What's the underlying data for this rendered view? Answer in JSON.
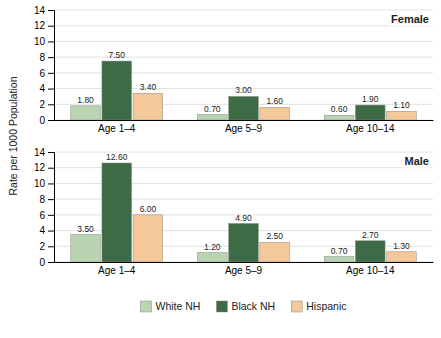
{
  "chart_data": [
    {
      "type": "bar",
      "title": "Female",
      "ylabel": "Rate per 1000 Population",
      "categories": [
        "Age 1–4",
        "Age 5–9",
        "Age 10–14"
      ],
      "series": [
        {
          "name": "White NH",
          "color": "#b8d4b0",
          "values": [
            1.8,
            0.7,
            0.6
          ],
          "value_labels": [
            "1.80",
            "0.70",
            "0.60"
          ]
        },
        {
          "name": "Black NH",
          "color": "#3d6b45",
          "values": [
            7.5,
            3.0,
            1.9
          ],
          "value_labels": [
            "7.50",
            "3.00",
            "1.90"
          ]
        },
        {
          "name": "Hispanic",
          "color": "#f5c89a",
          "values": [
            3.4,
            1.6,
            1.1
          ],
          "value_labels": [
            "3.40",
            "1.60",
            "1.10"
          ]
        }
      ],
      "ylim": [
        0,
        14
      ],
      "yticks": [
        0,
        2,
        4,
        6,
        8,
        10,
        12,
        14
      ],
      "grid": true,
      "data_labels": true,
      "legend": "bottom"
    },
    {
      "type": "bar",
      "title": "Male",
      "categories": [
        "Age 1–4",
        "Age 5–9",
        "Age 10–14"
      ],
      "series": [
        {
          "name": "White NH",
          "color": "#b8d4b0",
          "values": [
            3.5,
            1.2,
            0.7
          ],
          "value_labels": [
            "3.50",
            "1.20",
            "0.70"
          ]
        },
        {
          "name": "Black NH",
          "color": "#3d6b45",
          "values": [
            12.6,
            4.9,
            2.7
          ],
          "value_labels": [
            "12.60",
            "4.90",
            "2.70"
          ]
        },
        {
          "name": "Hispanic",
          "color": "#f5c89a",
          "values": [
            6.0,
            2.5,
            1.3
          ],
          "value_labels": [
            "6.00",
            "2.50",
            "1.30"
          ]
        }
      ],
      "ylim": [
        0,
        14
      ],
      "yticks": [
        0,
        2,
        4,
        6,
        8,
        10,
        12,
        14
      ],
      "grid": true,
      "data_labels": true
    }
  ]
}
